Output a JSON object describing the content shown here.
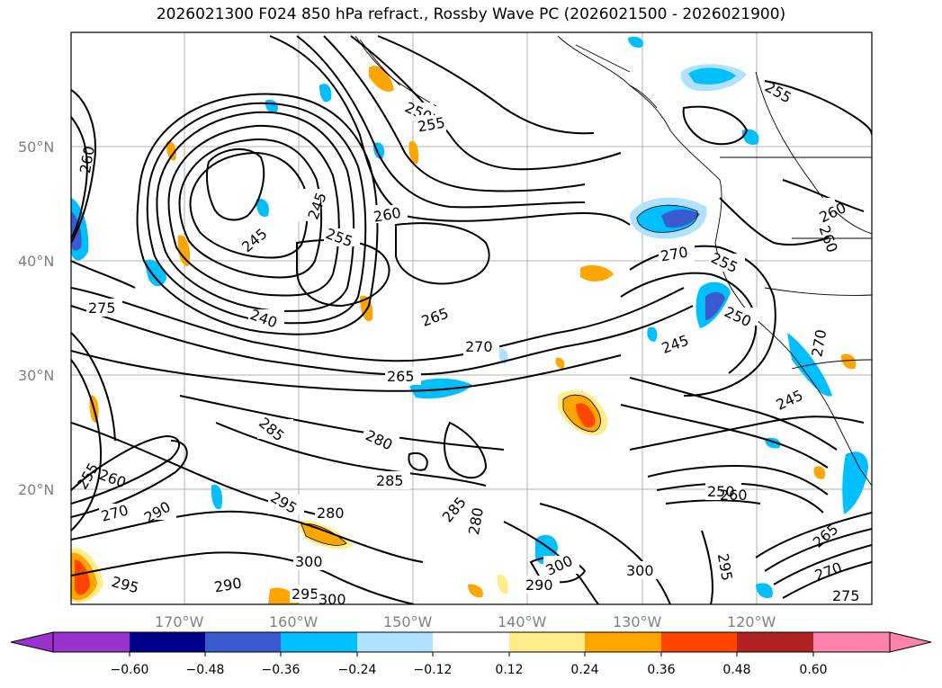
{
  "title": "2026021300 F024 850 hPa refract., Rossby Wave PC (2026021500 - 2026021900)",
  "lat_labels": [
    "50°N",
    "40°N",
    "30°N",
    "20°N"
  ],
  "lon_labels": [
    "170°W",
    "160°W",
    "150°W",
    "140°W",
    "130°W",
    "120°W"
  ],
  "colorbar": {
    "ticks": [
      "−0.60",
      "−0.48",
      "−0.36",
      "−0.24",
      "−0.12",
      "0.12",
      "0.24",
      "0.36",
      "0.48",
      "0.60"
    ],
    "colors": [
      "#9a32cd",
      "#00008b",
      "#3a5bd0",
      "#00bfff",
      "#b0e2ff",
      "#ffffff",
      "#ffec8b",
      "#ffa500",
      "#ff4500",
      "#b22222",
      "#ff82ab"
    ]
  },
  "contour_labels": [
    {
      "text": "250"
    },
    {
      "text": "255"
    },
    {
      "text": "255"
    },
    {
      "text": "260"
    },
    {
      "text": "270"
    },
    {
      "text": "245"
    },
    {
      "text": "245"
    },
    {
      "text": "260"
    },
    {
      "text": "255"
    },
    {
      "text": "240"
    },
    {
      "text": "265"
    },
    {
      "text": "270"
    },
    {
      "text": "275"
    },
    {
      "text": "265"
    },
    {
      "text": "270"
    },
    {
      "text": "255"
    },
    {
      "text": "250"
    },
    {
      "text": "245"
    },
    {
      "text": "245"
    },
    {
      "text": "260"
    },
    {
      "text": "260"
    },
    {
      "text": "285"
    },
    {
      "text": "280"
    },
    {
      "text": "285"
    },
    {
      "text": "295"
    },
    {
      "text": "280"
    },
    {
      "text": "285"
    },
    {
      "text": "280"
    },
    {
      "text": "290"
    },
    {
      "text": "270"
    },
    {
      "text": "255"
    },
    {
      "text": "260"
    },
    {
      "text": "300"
    },
    {
      "text": "290"
    },
    {
      "text": "295"
    },
    {
      "text": "300"
    },
    {
      "text": "295"
    },
    {
      "text": "300"
    },
    {
      "text": "290"
    },
    {
      "text": "300"
    },
    {
      "text": "295"
    },
    {
      "text": "250"
    },
    {
      "text": "260"
    },
    {
      "text": "265"
    },
    {
      "text": "270"
    },
    {
      "text": "275"
    }
  ]
}
